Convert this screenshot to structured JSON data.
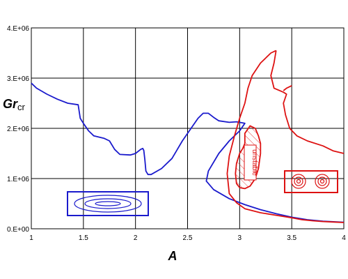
{
  "chart_data": {
    "type": "line",
    "title": "",
    "xlabel": "A",
    "ylabel": {
      "main": "Gr",
      "subscript": "cr"
    },
    "xlim": [
      1,
      4
    ],
    "ylim": [
      0,
      4000000
    ],
    "x_ticks": [
      1,
      1.5,
      2,
      2.5,
      3,
      3.5,
      4
    ],
    "x_tick_labels": [
      "1",
      "1.5",
      "2",
      "2.5",
      "3",
      "3.5",
      "4"
    ],
    "y_ticks": [
      0,
      1000000,
      2000000,
      3000000,
      4000000
    ],
    "y_tick_labels": [
      "0.E+00",
      "1.E+06",
      "2.E+06",
      "3.E+06",
      "4.E+06"
    ],
    "grid": true,
    "series": [
      {
        "color": "#1a1acc",
        "points": [
          [
            1.0,
            2900000
          ],
          [
            1.05,
            2800000
          ],
          [
            1.15,
            2680000
          ],
          [
            1.25,
            2580000
          ],
          [
            1.35,
            2500000
          ],
          [
            1.45,
            2470000
          ],
          [
            1.47,
            2200000
          ],
          [
            1.5,
            2100000
          ],
          [
            1.55,
            1950000
          ],
          [
            1.6,
            1850000
          ],
          [
            1.7,
            1800000
          ],
          [
            1.75,
            1750000
          ],
          [
            1.8,
            1580000
          ],
          [
            1.85,
            1480000
          ],
          [
            1.95,
            1470000
          ],
          [
            2.0,
            1500000
          ],
          [
            2.05,
            1580000
          ],
          [
            2.07,
            1600000
          ],
          [
            2.08,
            1560000
          ],
          [
            2.09,
            1380000
          ],
          [
            2.1,
            1150000
          ],
          [
            2.12,
            1080000
          ],
          [
            2.15,
            1080000
          ],
          [
            2.25,
            1200000
          ],
          [
            2.35,
            1400000
          ],
          [
            2.45,
            1750000
          ],
          [
            2.55,
            2050000
          ],
          [
            2.6,
            2200000
          ],
          [
            2.65,
            2300000
          ],
          [
            2.7,
            2300000
          ],
          [
            2.75,
            2220000
          ],
          [
            2.8,
            2150000
          ],
          [
            2.9,
            2120000
          ],
          [
            2.97,
            2130000
          ],
          [
            3.05,
            2100000
          ],
          [
            3.0,
            1950000
          ],
          [
            2.9,
            1750000
          ],
          [
            2.8,
            1500000
          ],
          [
            2.7,
            1150000
          ],
          [
            2.68,
            950000
          ],
          [
            2.75,
            780000
          ],
          [
            2.9,
            600000
          ],
          [
            3.05,
            480000
          ],
          [
            3.2,
            380000
          ],
          [
            3.35,
            300000
          ],
          [
            3.5,
            230000
          ],
          [
            3.65,
            180000
          ],
          [
            3.8,
            150000
          ],
          [
            4.0,
            130000
          ]
        ]
      },
      {
        "color": "#dd1111",
        "points": [
          [
            3.35,
            3550000
          ],
          [
            3.3,
            3500000
          ],
          [
            3.2,
            3300000
          ],
          [
            3.12,
            3050000
          ],
          [
            3.08,
            2800000
          ],
          [
            3.05,
            2500000
          ],
          [
            3.0,
            2200000
          ],
          [
            2.95,
            1850000
          ],
          [
            2.9,
            1450000
          ],
          [
            2.88,
            1100000
          ],
          [
            2.9,
            700000
          ],
          [
            2.97,
            520000
          ],
          [
            3.05,
            400000
          ],
          [
            3.2,
            320000
          ],
          [
            3.35,
            270000
          ],
          [
            3.5,
            220000
          ],
          [
            3.6,
            180000
          ],
          [
            3.7,
            160000
          ],
          [
            3.8,
            145000
          ],
          [
            3.9,
            135000
          ],
          [
            4.0,
            125000
          ]
        ]
      },
      {
        "color": "#dd1111",
        "points": [
          [
            3.35,
            3550000
          ],
          [
            3.33,
            3300000
          ],
          [
            3.3,
            3050000
          ],
          [
            3.33,
            2800000
          ],
          [
            3.42,
            2720000
          ],
          [
            3.45,
            2680000
          ],
          [
            3.42,
            2500000
          ],
          [
            3.44,
            2270000
          ],
          [
            3.48,
            2000000
          ],
          [
            3.55,
            1850000
          ],
          [
            3.65,
            1750000
          ],
          [
            3.8,
            1650000
          ],
          [
            3.9,
            1550000
          ],
          [
            4.0,
            1500000
          ]
        ]
      },
      {
        "color": "#dd1111",
        "points": [
          [
            3.5,
            2850000
          ],
          [
            3.45,
            2800000
          ],
          [
            3.42,
            2750000
          ]
        ]
      },
      {
        "color": "#dd1111",
        "points": [
          [
            3.05,
            1700000
          ],
          [
            3.05,
            1900000
          ],
          [
            3.1,
            2050000
          ],
          [
            3.15,
            2000000
          ],
          [
            3.18,
            1850000
          ],
          [
            3.2,
            1700000
          ],
          [
            3.2,
            1500000
          ],
          [
            3.18,
            1200000
          ],
          [
            3.15,
            1000000
          ],
          [
            3.1,
            850000
          ],
          [
            3.05,
            800000
          ],
          [
            3.0,
            820000
          ],
          [
            2.97,
            900000
          ],
          [
            2.96,
            1100000
          ],
          [
            2.97,
            1300000
          ],
          [
            3.0,
            1500000
          ],
          [
            3.03,
            1600000
          ],
          [
            3.05,
            1700000
          ]
        ]
      }
    ],
    "annotations": [
      {
        "text": "unstable",
        "color": "#dd1111"
      }
    ]
  },
  "colors": {
    "blue": "#1a1acc",
    "red": "#dd1111",
    "grid": "#000000"
  }
}
